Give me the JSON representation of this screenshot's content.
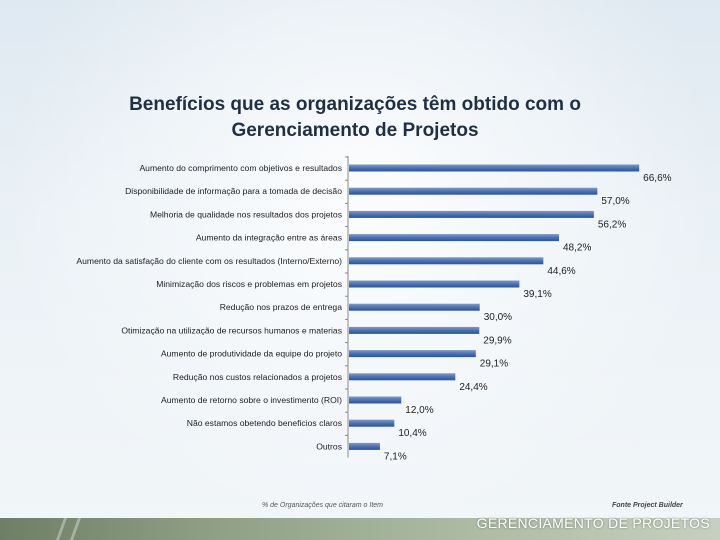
{
  "slide": {
    "title": "Benefícios que as organizações têm obtido com o\nGerenciamento de Projetos",
    "footer_left": "% de Organizações que citaram o Item",
    "footer_right": "Fonte Project Builder",
    "brand": "GERENCIAMENTO DE PROJETOS"
  },
  "colors": {
    "bar": "#4a72b5",
    "bar_dark": "#2f5291",
    "axis": "#888888"
  },
  "chart_data": {
    "type": "bar",
    "orientation": "horizontal",
    "title": "Benefícios que as organizações têm obtido com o Gerenciamento de Projetos",
    "xlabel": "% de Organizações que citaram o Item",
    "xlim": [
      0,
      70
    ],
    "grid": false,
    "categories": [
      "Aumento do comprimento com objetivos e resultados",
      "Disponibilidade de informação para a tomada de decisão",
      "Melhoria de qualidade nos resultados dos projetos",
      "Aumento da integração entre as áreas",
      "Aumento da satisfação do cliente com os resultados (Interno/Externo)",
      "Minimização dos riscos e problemas em projetos",
      "Redução nos prazos de entrega",
      "Otimização na utilização de recursos humanos e materias",
      "Aumento de produtividade da equipe do projeto",
      "Redução nos custos relacionados a projetos",
      "Aumento de retorno sobre o investimento (ROI)",
      "Não estamos obetendo beneficios claros",
      "Outros"
    ],
    "values": [
      66.6,
      57.0,
      56.2,
      48.2,
      44.6,
      39.1,
      30.0,
      29.9,
      29.1,
      24.4,
      12.0,
      10.4,
      7.1
    ],
    "value_labels": [
      "66,6%",
      "57,0%",
      "56,2%",
      "48,2%",
      "44,6%",
      "39,1%",
      "30,0%",
      "29,9%",
      "29,1%",
      "24,4%",
      "12,0%",
      "10,4%",
      "7,1%"
    ]
  }
}
